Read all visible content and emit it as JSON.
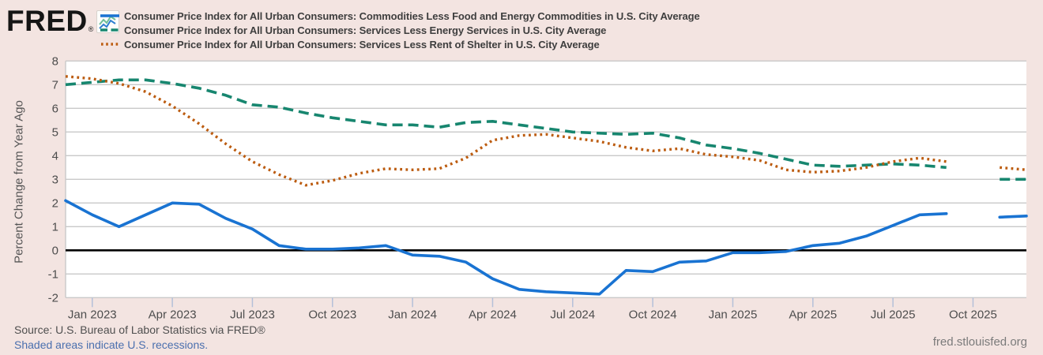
{
  "logo": {
    "text": "FRED",
    "registered": "®",
    "icon": "fred-sparkline-icon"
  },
  "legend": [
    {
      "label": "Consumer Price Index for All Urban Consumers: Commodities Less Food and Energy Commodities in U.S. City Average",
      "color": "#1973d2",
      "style": "solid"
    },
    {
      "label": "Consumer Price Index for All Urban Consumers: Services Less Energy Services in U.S. City Average",
      "color": "#17866f",
      "style": "dashed"
    },
    {
      "label": "Consumer Price Index for All Urban Consumers: Services Less Rent of Shelter in U.S. City Average",
      "color": "#bc5c10",
      "style": "dotted"
    }
  ],
  "footer": {
    "source": "Source: U.S. Bureau of Labor Statistics via FRED®",
    "note": "Shaded areas indicate U.S. recessions.",
    "site": "fred.stlouisfed.org"
  },
  "chart_data": {
    "type": "line",
    "ylabel": "Percent Change from Year Ago",
    "ylim": [
      -2,
      8
    ],
    "yticks": [
      8,
      7,
      6,
      5,
      4,
      3,
      2,
      1,
      0,
      -1,
      -2
    ],
    "zero_line": 0,
    "grid": "horizontal-only",
    "legend_position": "top",
    "gap_note": "no data plotted for Oct 2025",
    "months": [
      "Dec 2022",
      "Jan 2023",
      "Feb 2023",
      "Mar 2023",
      "Apr 2023",
      "May 2023",
      "Jun 2023",
      "Jul 2023",
      "Aug 2023",
      "Sep 2023",
      "Oct 2023",
      "Nov 2023",
      "Dec 2023",
      "Jan 2024",
      "Feb 2024",
      "Mar 2024",
      "Apr 2024",
      "May 2024",
      "Jun 2024",
      "Jul 2024",
      "Aug 2024",
      "Sep 2024",
      "Oct 2024",
      "Nov 2024",
      "Dec 2024",
      "Jan 2025",
      "Feb 2025",
      "Mar 2025",
      "Apr 2025",
      "May 2025",
      "Jun 2025",
      "Jul 2025",
      "Aug 2025",
      "Sep 2025",
      "Oct 2025",
      "Nov 2025",
      "Dec 2025"
    ],
    "x_tick_indices": [
      1,
      4,
      7,
      10,
      13,
      16,
      19,
      22,
      25,
      28,
      31,
      34
    ],
    "x_tick_labels": [
      "Jan 2023",
      "Apr 2023",
      "Jul 2023",
      "Oct 2023",
      "Jan 2024",
      "Apr 2024",
      "Jul 2024",
      "Oct 2024",
      "Jan 2025",
      "Apr 2025",
      "Jul 2025",
      "Oct 2025"
    ],
    "series": [
      {
        "name": "Commodities Less Food and Energy Commodities",
        "color": "#1973d2",
        "style": "solid",
        "values": [
          2.1,
          1.5,
          1.0,
          1.5,
          2.0,
          1.95,
          1.35,
          0.9,
          0.2,
          0.05,
          0.05,
          0.1,
          0.2,
          -0.2,
          -0.25,
          -0.5,
          -1.2,
          -1.65,
          -1.75,
          -1.8,
          -1.85,
          -0.85,
          -0.9,
          -0.5,
          -0.45,
          -0.1,
          -0.1,
          -0.05,
          0.2,
          0.3,
          0.6,
          1.05,
          1.5,
          1.55,
          null,
          1.4,
          1.45
        ]
      },
      {
        "name": "Services Less Energy Services",
        "color": "#17866f",
        "style": "dashed",
        "values": [
          7.0,
          7.1,
          7.2,
          7.2,
          7.05,
          6.85,
          6.55,
          6.15,
          6.05,
          5.8,
          5.6,
          5.45,
          5.3,
          5.3,
          5.2,
          5.4,
          5.45,
          5.3,
          5.15,
          5.0,
          4.95,
          4.9,
          4.95,
          4.75,
          4.45,
          4.3,
          4.1,
          3.85,
          3.6,
          3.55,
          3.6,
          3.65,
          3.6,
          3.5,
          null,
          3.0,
          3.0
        ]
      },
      {
        "name": "Services Less Rent of Shelter",
        "color": "#bc5c10",
        "style": "dotted",
        "values": [
          7.35,
          7.25,
          7.05,
          6.7,
          6.1,
          5.35,
          4.5,
          3.75,
          3.2,
          2.75,
          2.95,
          3.25,
          3.45,
          3.4,
          3.45,
          3.9,
          4.65,
          4.85,
          4.9,
          4.75,
          4.6,
          4.35,
          4.2,
          4.3,
          4.05,
          3.95,
          3.8,
          3.4,
          3.3,
          3.35,
          3.5,
          3.75,
          3.9,
          3.75,
          null,
          3.5,
          3.4
        ]
      }
    ]
  }
}
